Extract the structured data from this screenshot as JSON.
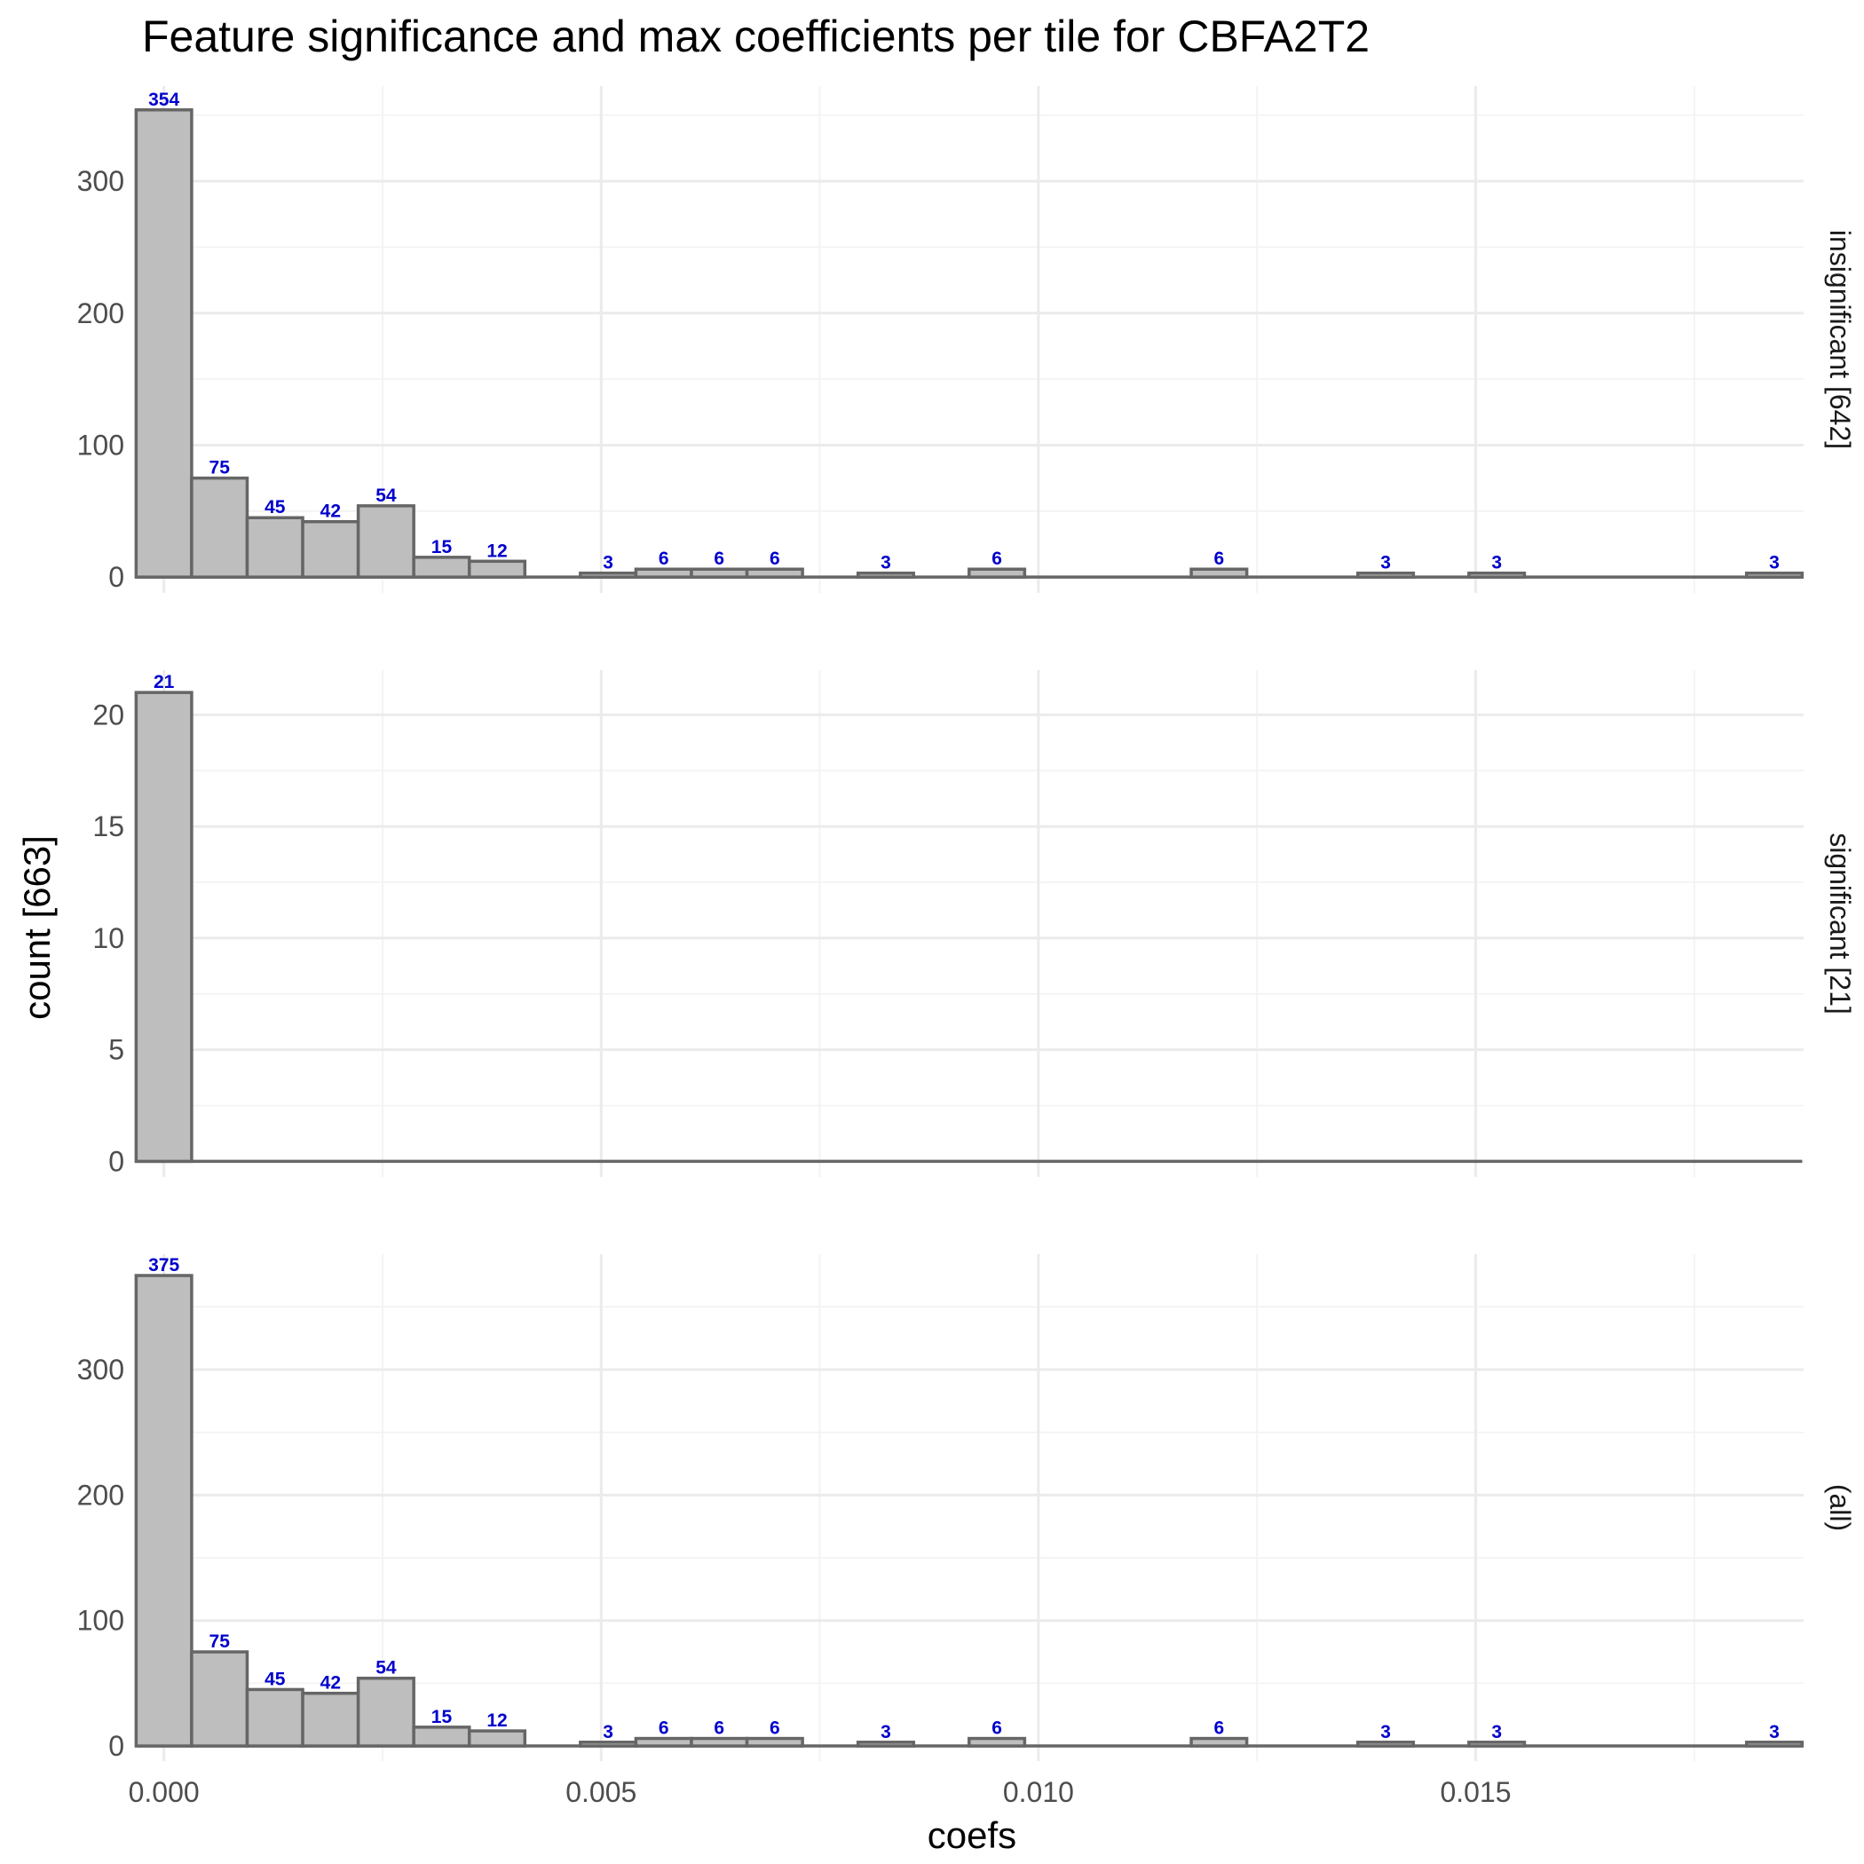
{
  "chart_data": {
    "type": "bar",
    "title": "Feature significance and max coefficients per tile for CBFA2T2",
    "xlabel": "coefs",
    "ylabel": "count [663]",
    "xlim": [
      -0.00025,
      0.01875
    ],
    "x_ticks": [
      "0.000",
      "0.005",
      "0.010",
      "0.015"
    ],
    "x_tick_values": [
      0,
      0.005,
      0.01,
      0.015
    ],
    "bin_width": 0.000635,
    "grid": true,
    "colors": {
      "bar_fill": "#bebebe",
      "bar_outline": "#666666",
      "data_label": "#0000cc"
    },
    "bins": [
      {
        "x": 0.0,
        "insignificant": 354,
        "significant": 21,
        "all": 375
      },
      {
        "x": 0.000635,
        "insignificant": 75,
        "significant": 0,
        "all": 75
      },
      {
        "x": 0.00127,
        "insignificant": 45,
        "significant": 0,
        "all": 45
      },
      {
        "x": 0.001905,
        "insignificant": 42,
        "significant": 0,
        "all": 42
      },
      {
        "x": 0.00254,
        "insignificant": 54,
        "significant": 0,
        "all": 54
      },
      {
        "x": 0.003175,
        "insignificant": 15,
        "significant": 0,
        "all": 15
      },
      {
        "x": 0.00381,
        "insignificant": 12,
        "significant": 0,
        "all": 12
      },
      {
        "x": 0.004445,
        "insignificant": 0,
        "significant": 0,
        "all": 0
      },
      {
        "x": 0.00508,
        "insignificant": 3,
        "significant": 0,
        "all": 3
      },
      {
        "x": 0.005715,
        "insignificant": 6,
        "significant": 0,
        "all": 6
      },
      {
        "x": 0.00635,
        "insignificant": 6,
        "significant": 0,
        "all": 6
      },
      {
        "x": 0.006985,
        "insignificant": 6,
        "significant": 0,
        "all": 6
      },
      {
        "x": 0.00762,
        "insignificant": 0,
        "significant": 0,
        "all": 0
      },
      {
        "x": 0.008255,
        "insignificant": 3,
        "significant": 0,
        "all": 3
      },
      {
        "x": 0.00889,
        "insignificant": 0,
        "significant": 0,
        "all": 0
      },
      {
        "x": 0.009525,
        "insignificant": 6,
        "significant": 0,
        "all": 6
      },
      {
        "x": 0.01016,
        "insignificant": 0,
        "significant": 0,
        "all": 0
      },
      {
        "x": 0.010795,
        "insignificant": 0,
        "significant": 0,
        "all": 0
      },
      {
        "x": 0.01143,
        "insignificant": 0,
        "significant": 0,
        "all": 0
      },
      {
        "x": 0.012065,
        "insignificant": 6,
        "significant": 0,
        "all": 6
      },
      {
        "x": 0.0127,
        "insignificant": 0,
        "significant": 0,
        "all": 0
      },
      {
        "x": 0.013335,
        "insignificant": 0,
        "significant": 0,
        "all": 0
      },
      {
        "x": 0.01397,
        "insignificant": 3,
        "significant": 0,
        "all": 3
      },
      {
        "x": 0.014605,
        "insignificant": 0,
        "significant": 0,
        "all": 0
      },
      {
        "x": 0.01524,
        "insignificant": 3,
        "significant": 0,
        "all": 3
      },
      {
        "x": 0.015875,
        "insignificant": 0,
        "significant": 0,
        "all": 0
      },
      {
        "x": 0.01651,
        "insignificant": 0,
        "significant": 0,
        "all": 0
      },
      {
        "x": 0.017145,
        "insignificant": 0,
        "significant": 0,
        "all": 0
      },
      {
        "x": 0.01778,
        "insignificant": 0,
        "significant": 0,
        "all": 0
      },
      {
        "x": 0.018415,
        "insignificant": 3,
        "significant": 0,
        "all": 3
      }
    ],
    "facets": [
      {
        "key": "insignificant",
        "strip": "insignificant [642]",
        "ylim": [
          -12,
          372
        ],
        "y_ticks": [
          0,
          100,
          200,
          300
        ]
      },
      {
        "key": "significant",
        "strip": "significant [21]",
        "ylim": [
          -0.7,
          22
        ],
        "y_ticks": [
          0,
          5,
          10,
          15,
          20
        ]
      },
      {
        "key": "all",
        "strip": "(all)",
        "ylim": [
          -12,
          392
        ],
        "y_ticks": [
          0,
          100,
          200,
          300
        ]
      }
    ]
  }
}
